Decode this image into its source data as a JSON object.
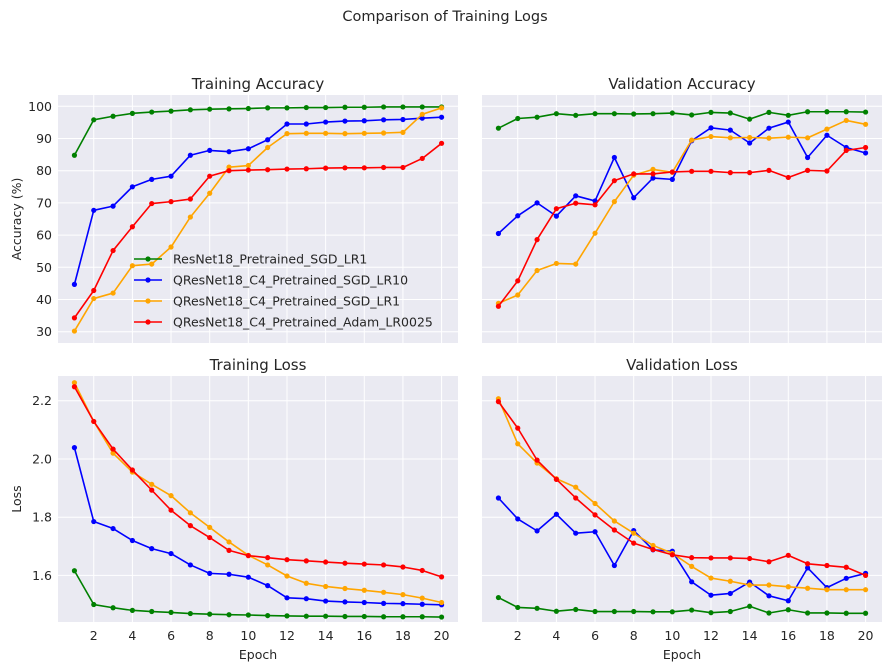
{
  "suptitle": "Comparison of Training Logs",
  "colors": {
    "panel_bg": "#EAEAF2",
    "grid": "#ffffff",
    "series": [
      "#008000",
      "#0000FF",
      "#FFA500",
      "#FF0000"
    ]
  },
  "chart_data": [
    {
      "type": "line",
      "title": "Training Accuracy",
      "xlabel": "",
      "ylabel": "Accuracy (%)",
      "xlim": [
        0.15,
        20.85
      ],
      "ylim": [
        26.5,
        103.5
      ],
      "xticks": [
        2,
        4,
        6,
        8,
        10,
        12,
        14,
        16,
        18,
        20
      ],
      "yticks": [
        30,
        40,
        50,
        60,
        70,
        80,
        90,
        100
      ],
      "show_xticklabels": false,
      "show_yticklabels": true,
      "legend": "center-left",
      "x": [
        1,
        2,
        3,
        4,
        5,
        6,
        7,
        8,
        9,
        10,
        11,
        12,
        13,
        14,
        15,
        16,
        17,
        18,
        19,
        20
      ],
      "series": [
        {
          "name": "ResNet18_Pretrained_SGD_LR1",
          "values": [
            84.8,
            95.8,
            96.9,
            97.8,
            98.2,
            98.5,
            98.9,
            99.1,
            99.2,
            99.3,
            99.5,
            99.5,
            99.6,
            99.6,
            99.7,
            99.7,
            99.8,
            99.8,
            99.8,
            99.8
          ]
        },
        {
          "name": "QResNet18_C4_Pretrained_SGD_LR10",
          "values": [
            44.7,
            67.7,
            69.0,
            75.0,
            77.3,
            78.3,
            84.8,
            86.3,
            85.9,
            86.8,
            89.6,
            94.5,
            94.5,
            95.1,
            95.4,
            95.5,
            95.8,
            95.9,
            96.3,
            96.6
          ]
        },
        {
          "name": "QResNet18_C4_Pretrained_SGD_LR1",
          "values": [
            30.2,
            40.3,
            42.0,
            50.5,
            51.0,
            56.3,
            65.6,
            73.0,
            81.1,
            81.6,
            87.2,
            91.5,
            91.6,
            91.6,
            91.5,
            91.6,
            91.7,
            91.9,
            97.5,
            99.5
          ]
        },
        {
          "name": "QResNet18_C4_Pretrained_Adam_LR0025",
          "values": [
            34.3,
            42.8,
            55.2,
            62.6,
            69.8,
            70.4,
            71.2,
            78.3,
            80.0,
            80.2,
            80.3,
            80.5,
            80.6,
            80.8,
            80.9,
            80.9,
            81.0,
            81.0,
            83.8,
            88.5
          ]
        }
      ]
    },
    {
      "type": "line",
      "title": "Validation Accuracy",
      "xlabel": "",
      "ylabel": "",
      "xlim": [
        0.15,
        20.85
      ],
      "ylim": [
        26.5,
        103.5
      ],
      "xticks": [
        2,
        4,
        6,
        8,
        10,
        12,
        14,
        16,
        18,
        20
      ],
      "yticks": [
        30,
        40,
        50,
        60,
        70,
        80,
        90,
        100
      ],
      "show_xticklabels": false,
      "show_yticklabels": false,
      "x": [
        1,
        2,
        3,
        4,
        5,
        6,
        7,
        8,
        9,
        10,
        11,
        12,
        13,
        14,
        15,
        16,
        17,
        18,
        19,
        20
      ],
      "series": [
        {
          "name": "ResNet18_Pretrained_SGD_LR1",
          "values": [
            93.2,
            96.2,
            96.6,
            97.7,
            97.2,
            97.7,
            97.7,
            97.6,
            97.7,
            97.9,
            97.3,
            98.1,
            97.9,
            96.0,
            98.1,
            97.2,
            98.3,
            98.3,
            98.3,
            98.2
          ]
        },
        {
          "name": "QResNet18_C4_Pretrained_SGD_LR10",
          "values": [
            60.5,
            66.0,
            70.0,
            65.9,
            72.2,
            70.6,
            84.1,
            71.6,
            77.7,
            77.3,
            89.3,
            93.3,
            92.6,
            88.6,
            93.2,
            95.1,
            84.1,
            91.0,
            87.2,
            85.5
          ]
        },
        {
          "name": "QResNet18_C4_Pretrained_SGD_LR1",
          "values": [
            38.8,
            41.4,
            49.0,
            51.2,
            51.0,
            60.6,
            70.4,
            78.6,
            80.4,
            79.5,
            89.5,
            90.6,
            90.2,
            90.3,
            90.1,
            90.4,
            90.2,
            92.9,
            95.6,
            94.4
          ]
        },
        {
          "name": "QResNet18_C4_Pretrained_Adam_LR0025",
          "values": [
            37.9,
            45.8,
            58.6,
            68.2,
            69.9,
            69.4,
            76.9,
            79.0,
            79.0,
            79.6,
            79.8,
            79.8,
            79.4,
            79.4,
            80.1,
            77.9,
            80.1,
            79.9,
            86.3,
            87.2
          ]
        }
      ]
    },
    {
      "type": "line",
      "title": "Training Loss",
      "xlabel": "Epoch",
      "ylabel": "Loss",
      "xlim": [
        0.15,
        20.85
      ],
      "ylim": [
        1.44,
        2.285
      ],
      "xticks": [
        2,
        4,
        6,
        8,
        10,
        12,
        14,
        16,
        18,
        20
      ],
      "yticks": [
        1.6,
        1.8,
        2.0,
        2.2
      ],
      "ytick_labels": [
        "1.6",
        "1.8",
        "2.0",
        "2.2"
      ],
      "show_xticklabels": true,
      "show_yticklabels": true,
      "x": [
        1,
        2,
        3,
        4,
        5,
        6,
        7,
        8,
        9,
        10,
        11,
        12,
        13,
        14,
        15,
        16,
        17,
        18,
        19,
        20
      ],
      "series": [
        {
          "name": "ResNet18_Pretrained_SGD_LR1",
          "values": [
            1.616,
            1.5,
            1.489,
            1.48,
            1.476,
            1.473,
            1.469,
            1.467,
            1.465,
            1.464,
            1.462,
            1.461,
            1.46,
            1.46,
            1.459,
            1.459,
            1.458,
            1.458,
            1.458,
            1.457
          ]
        },
        {
          "name": "QResNet18_C4_Pretrained_SGD_LR10",
          "values": [
            2.039,
            1.785,
            1.761,
            1.72,
            1.692,
            1.675,
            1.636,
            1.607,
            1.604,
            1.594,
            1.565,
            1.523,
            1.52,
            1.512,
            1.509,
            1.507,
            1.504,
            1.503,
            1.501,
            1.499
          ]
        },
        {
          "name": "QResNet18_C4_Pretrained_SGD_LR1",
          "values": [
            2.262,
            2.129,
            2.02,
            1.955,
            1.913,
            1.874,
            1.815,
            1.765,
            1.715,
            1.669,
            1.636,
            1.598,
            1.573,
            1.562,
            1.555,
            1.549,
            1.542,
            1.534,
            1.522,
            1.507
          ]
        },
        {
          "name": "QResNet18_C4_Pretrained_Adam_LR0025",
          "values": [
            2.248,
            2.129,
            2.034,
            1.962,
            1.893,
            1.824,
            1.771,
            1.73,
            1.686,
            1.668,
            1.661,
            1.654,
            1.65,
            1.646,
            1.642,
            1.639,
            1.636,
            1.629,
            1.617,
            1.595
          ]
        }
      ]
    },
    {
      "type": "line",
      "title": "Validation Loss",
      "xlabel": "Epoch",
      "ylabel": "",
      "xlim": [
        0.15,
        20.85
      ],
      "ylim": [
        1.44,
        2.285
      ],
      "xticks": [
        2,
        4,
        6,
        8,
        10,
        12,
        14,
        16,
        18,
        20
      ],
      "yticks": [
        1.6,
        1.8,
        2.0,
        2.2
      ],
      "show_xticklabels": true,
      "show_yticklabels": false,
      "x": [
        1,
        2,
        3,
        4,
        5,
        6,
        7,
        8,
        9,
        10,
        11,
        12,
        13,
        14,
        15,
        16,
        17,
        18,
        19,
        20
      ],
      "series": [
        {
          "name": "ResNet18_Pretrained_SGD_LR1",
          "values": [
            1.524,
            1.49,
            1.487,
            1.477,
            1.483,
            1.476,
            1.476,
            1.476,
            1.475,
            1.475,
            1.481,
            1.472,
            1.476,
            1.494,
            1.471,
            1.482,
            1.471,
            1.471,
            1.47,
            1.47
          ]
        },
        {
          "name": "QResNet18_C4_Pretrained_SGD_LR10",
          "values": [
            1.866,
            1.794,
            1.753,
            1.81,
            1.745,
            1.75,
            1.634,
            1.754,
            1.688,
            1.683,
            1.578,
            1.532,
            1.538,
            1.577,
            1.53,
            1.513,
            1.626,
            1.558,
            1.59,
            1.607
          ]
        },
        {
          "name": "QResNet18_C4_Pretrained_SGD_LR1",
          "values": [
            2.207,
            2.052,
            1.986,
            1.932,
            1.903,
            1.847,
            1.787,
            1.745,
            1.703,
            1.676,
            1.631,
            1.591,
            1.58,
            1.567,
            1.567,
            1.561,
            1.556,
            1.551,
            1.551,
            1.551
          ]
        },
        {
          "name": "QResNet18_C4_Pretrained_Adam_LR0025",
          "values": [
            2.197,
            2.106,
            1.996,
            1.93,
            1.866,
            1.808,
            1.756,
            1.711,
            1.689,
            1.671,
            1.661,
            1.66,
            1.66,
            1.658,
            1.647,
            1.669,
            1.64,
            1.634,
            1.628,
            1.6
          ]
        }
      ]
    }
  ]
}
